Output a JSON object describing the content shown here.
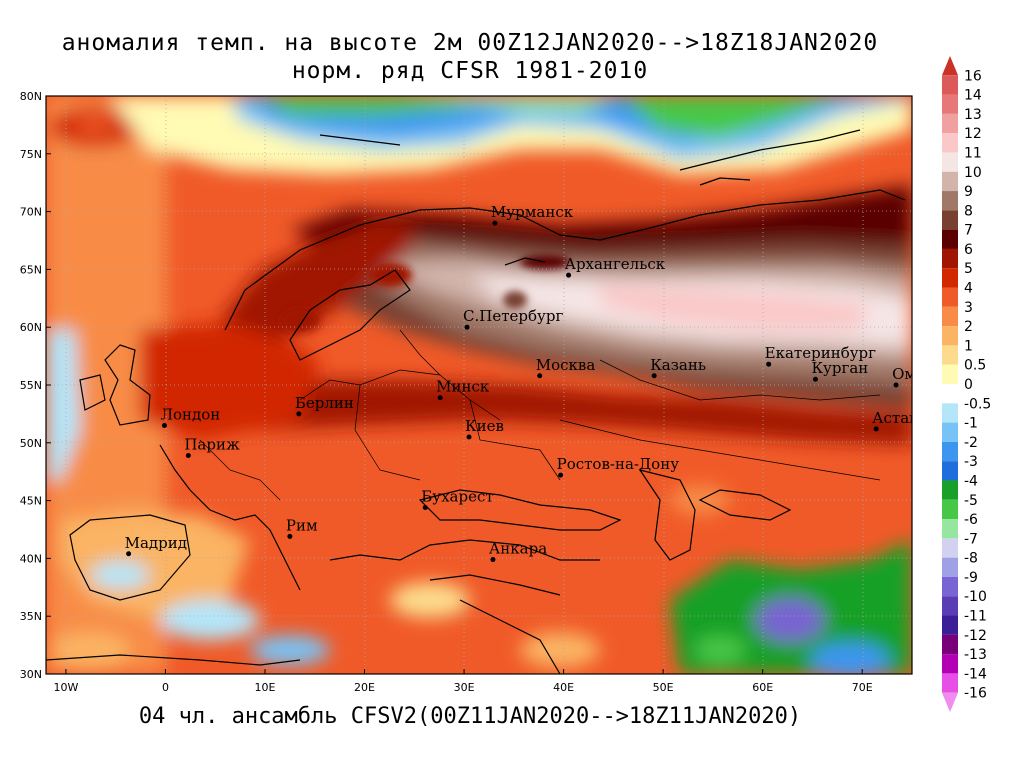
{
  "title": {
    "line1": "аномалия темп. на высоте 2м 00Z12JAN2020-->18Z18JAN2020",
    "line2": "норм. ряд CFSR 1981-2010"
  },
  "footer": "04 чл. ансамбль CFSV2(00Z11JAN2020-->18Z11JAN2020)",
  "map": {
    "lat_range": [
      30,
      80
    ],
    "lon_range": [
      -12,
      75
    ],
    "lat_labels": [
      "80N",
      "75N",
      "70N",
      "65N",
      "60N",
      "55N",
      "50N",
      "45N",
      "40N",
      "35N",
      "30N"
    ],
    "lon_labels": [
      "10W",
      "0",
      "10E",
      "20E",
      "30E",
      "40E",
      "50E",
      "60E",
      "70E"
    ],
    "gridlines": true,
    "cities": [
      {
        "name": "Мурманск",
        "lat": 69.0,
        "lon": 33.1
      },
      {
        "name": "Архангельск",
        "lat": 64.5,
        "lon": 40.5
      },
      {
        "name": "С.Петербург",
        "lat": 60.0,
        "lon": 30.3
      },
      {
        "name": "Москва",
        "lat": 55.8,
        "lon": 37.6
      },
      {
        "name": "Казань",
        "lat": 55.8,
        "lon": 49.1
      },
      {
        "name": "Екатеринбург",
        "lat": 56.8,
        "lon": 60.6
      },
      {
        "name": "Курган",
        "lat": 55.5,
        "lon": 65.3
      },
      {
        "name": "Омск",
        "lat": 55.0,
        "lon": 73.4
      },
      {
        "name": "Астана",
        "lat": 51.2,
        "lon": 71.4
      },
      {
        "name": "Минск",
        "lat": 53.9,
        "lon": 27.6
      },
      {
        "name": "Киев",
        "lat": 50.5,
        "lon": 30.5
      },
      {
        "name": "Берлин",
        "lat": 52.5,
        "lon": 13.4
      },
      {
        "name": "Лондон",
        "lat": 51.5,
        "lon": -0.1
      },
      {
        "name": "Париж",
        "lat": 48.9,
        "lon": 2.3
      },
      {
        "name": "Ростов-на-Дону",
        "lat": 47.2,
        "lon": 39.7
      },
      {
        "name": "Бухарест",
        "lat": 44.4,
        "lon": 26.1
      },
      {
        "name": "Рим",
        "lat": 41.9,
        "lon": 12.5
      },
      {
        "name": "Мадрид",
        "lat": 40.4,
        "lon": -3.7
      },
      {
        "name": "Анкара",
        "lat": 39.9,
        "lon": 32.9
      }
    ]
  },
  "legend": {
    "items": [
      {
        "label": "16",
        "color": "#c83228"
      },
      {
        "label": "14",
        "color": "#dc5a5a"
      },
      {
        "label": "13",
        "color": "#e67878"
      },
      {
        "label": "12",
        "color": "#f0a0a0"
      },
      {
        "label": "11",
        "color": "#fac8c8"
      },
      {
        "label": "10",
        "color": "#f5e6e6"
      },
      {
        "label": "9",
        "color": "#d2b4aa"
      },
      {
        "label": "8",
        "color": "#a07868"
      },
      {
        "label": "7",
        "color": "#784030"
      },
      {
        "label": "6",
        "color": "#5a0000"
      },
      {
        "label": "5",
        "color": "#a01400"
      },
      {
        "label": "4",
        "color": "#d22800"
      },
      {
        "label": "3",
        "color": "#f05a28"
      },
      {
        "label": "2",
        "color": "#f88c46"
      },
      {
        "label": "1",
        "color": "#fab464"
      },
      {
        "label": "0.5",
        "color": "#fcdc8c"
      },
      {
        "label": "0",
        "color": "#fffab4"
      },
      {
        "label": "-0.5",
        "color": "#ffffff"
      },
      {
        "label": "-1",
        "color": "#b4e6fa"
      },
      {
        "label": "-2",
        "color": "#78c3f5"
      },
      {
        "label": "-3",
        "color": "#3c96f0"
      },
      {
        "label": "-4",
        "color": "#1e6ede"
      },
      {
        "label": "-5",
        "color": "#18a028"
      },
      {
        "label": "-6",
        "color": "#46c846"
      },
      {
        "label": "-7",
        "color": "#96e6a0"
      },
      {
        "label": "-8",
        "color": "#d2d2f0"
      },
      {
        "label": "-9",
        "color": "#a0a0e6"
      },
      {
        "label": "-10",
        "color": "#7864d2"
      },
      {
        "label": "-11",
        "color": "#5a3cb4"
      },
      {
        "label": "-12",
        "color": "#3c1e96"
      },
      {
        "label": "-13",
        "color": "#780078"
      },
      {
        "label": "-14",
        "color": "#b400b4"
      },
      {
        "label": "-16",
        "color": "#e650e6"
      },
      {
        "label": "",
        "color": "#f08cf0"
      }
    ]
  }
}
